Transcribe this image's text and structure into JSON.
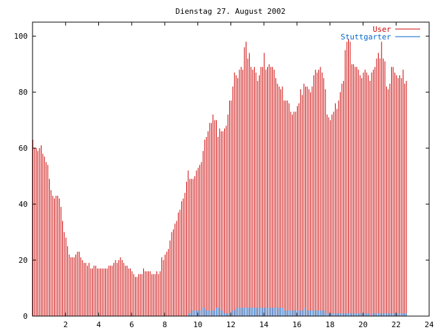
{
  "chart_data": {
    "type": "bar",
    "title": "Dienstag 27. August 2002",
    "xlabel": "",
    "ylabel": "",
    "xlim": [
      0,
      24
    ],
    "ylim": [
      0,
      105
    ],
    "x_ticks": [
      "2",
      "4",
      "6",
      "8",
      "10",
      "12",
      "14",
      "16",
      "18",
      "20",
      "22",
      "24"
    ],
    "y_ticks": [
      "0",
      "20",
      "40",
      "60",
      "80",
      "100"
    ],
    "grid": false,
    "legend_position": "top-right",
    "series": [
      {
        "name": "User",
        "color": "#cc0000",
        "style": "impulses",
        "step_hours": 0.1,
        "values": [
          63,
          60,
          60,
          59,
          60,
          61,
          58,
          57,
          55,
          54,
          49,
          45,
          43,
          42,
          43,
          43,
          42,
          39,
          34,
          30,
          28,
          25,
          22,
          21,
          21,
          21,
          22,
          23,
          23,
          21,
          20,
          19,
          19,
          18,
          19,
          17,
          17,
          18,
          18,
          17,
          17,
          17,
          17,
          17,
          17,
          17,
          18,
          18,
          18,
          19,
          20,
          19,
          20,
          21,
          20,
          19,
          18,
          18,
          17,
          17,
          16,
          15,
          14,
          14,
          15,
          15,
          15,
          17,
          16,
          16,
          16,
          16,
          15,
          15,
          15,
          16,
          15,
          16,
          21,
          20,
          22,
          23,
          24,
          27,
          30,
          31,
          33,
          34,
          37,
          38,
          41,
          42,
          44,
          48,
          52,
          49,
          49,
          49,
          50,
          52,
          53,
          54,
          55,
          59,
          63,
          64,
          66,
          69,
          69,
          72,
          70,
          70,
          64,
          67,
          66,
          66,
          67,
          68,
          72,
          77,
          77,
          82,
          87,
          86,
          85,
          88,
          89,
          88,
          96,
          98,
          92,
          94,
          89,
          88,
          89,
          87,
          84,
          86,
          89,
          89,
          94,
          88,
          89,
          90,
          89,
          89,
          88,
          85,
          83,
          82,
          81,
          82,
          77,
          77,
          77,
          76,
          73,
          72,
          73,
          73,
          75,
          76,
          81,
          79,
          83,
          82,
          82,
          81,
          80,
          82,
          86,
          88,
          87,
          88,
          89,
          87,
          85,
          81,
          72,
          71,
          70,
          72,
          73,
          76,
          74,
          77,
          80,
          83,
          84,
          95,
          98,
          99,
          98,
          90,
          90,
          89,
          89,
          88,
          86,
          85,
          87,
          88,
          87,
          86,
          84,
          87,
          88,
          89,
          92,
          94,
          92,
          98,
          92,
          91,
          82,
          81,
          83,
          89,
          89,
          87,
          86,
          85,
          86,
          85,
          88,
          83,
          84
        ]
      },
      {
        "name": "Stuttgarter",
        "color": "#0066cc",
        "style": "impulses",
        "step_hours": 0.1,
        "values": [
          0,
          0,
          0,
          0,
          0,
          0,
          0,
          0,
          0,
          0,
          0,
          0,
          0,
          0,
          0,
          0,
          0,
          0,
          0,
          0,
          0,
          0,
          0,
          0,
          0,
          0,
          0,
          0,
          0,
          0,
          0,
          0,
          0,
          0,
          0,
          0,
          0,
          0,
          0,
          0,
          0,
          0,
          0,
          0,
          0,
          0,
          0,
          0,
          0,
          0,
          0,
          0,
          0,
          0,
          0,
          0,
          0,
          0,
          0,
          0,
          0,
          0,
          0,
          0,
          0,
          0,
          0,
          0,
          0,
          0,
          0,
          0,
          0,
          0,
          0,
          0,
          0,
          0,
          0,
          0,
          0,
          0,
          0,
          0,
          0,
          0,
          0,
          0,
          0,
          0,
          0,
          0,
          0,
          0,
          1,
          1,
          2,
          2,
          2,
          2,
          2,
          2,
          2,
          3,
          3,
          2,
          2,
          2,
          2,
          2,
          2,
          3,
          3,
          3,
          2,
          2,
          1,
          1,
          1,
          1,
          1,
          2,
          2,
          3,
          3,
          3,
          3,
          3,
          3,
          3,
          3,
          3,
          3,
          3,
          3,
          3,
          3,
          3,
          3,
          3,
          3,
          3,
          3,
          3,
          3,
          3,
          3,
          3,
          3,
          3,
          3,
          3,
          2,
          2,
          2,
          2,
          2,
          2,
          2,
          2,
          2,
          2,
          2,
          2,
          3,
          3,
          2,
          2,
          2,
          2,
          2,
          2,
          2,
          2,
          2,
          2,
          2,
          2,
          1,
          1,
          1,
          1,
          1,
          1,
          1,
          1,
          1,
          1,
          1,
          1,
          1,
          1,
          1,
          1,
          1,
          1,
          1,
          1,
          1,
          1,
          1,
          1,
          1,
          1,
          0,
          1,
          1,
          1,
          1,
          1,
          1,
          1,
          1,
          1,
          1,
          1,
          1,
          1,
          1,
          1,
          1,
          1,
          1,
          1,
          1,
          1,
          1
        ]
      }
    ]
  }
}
